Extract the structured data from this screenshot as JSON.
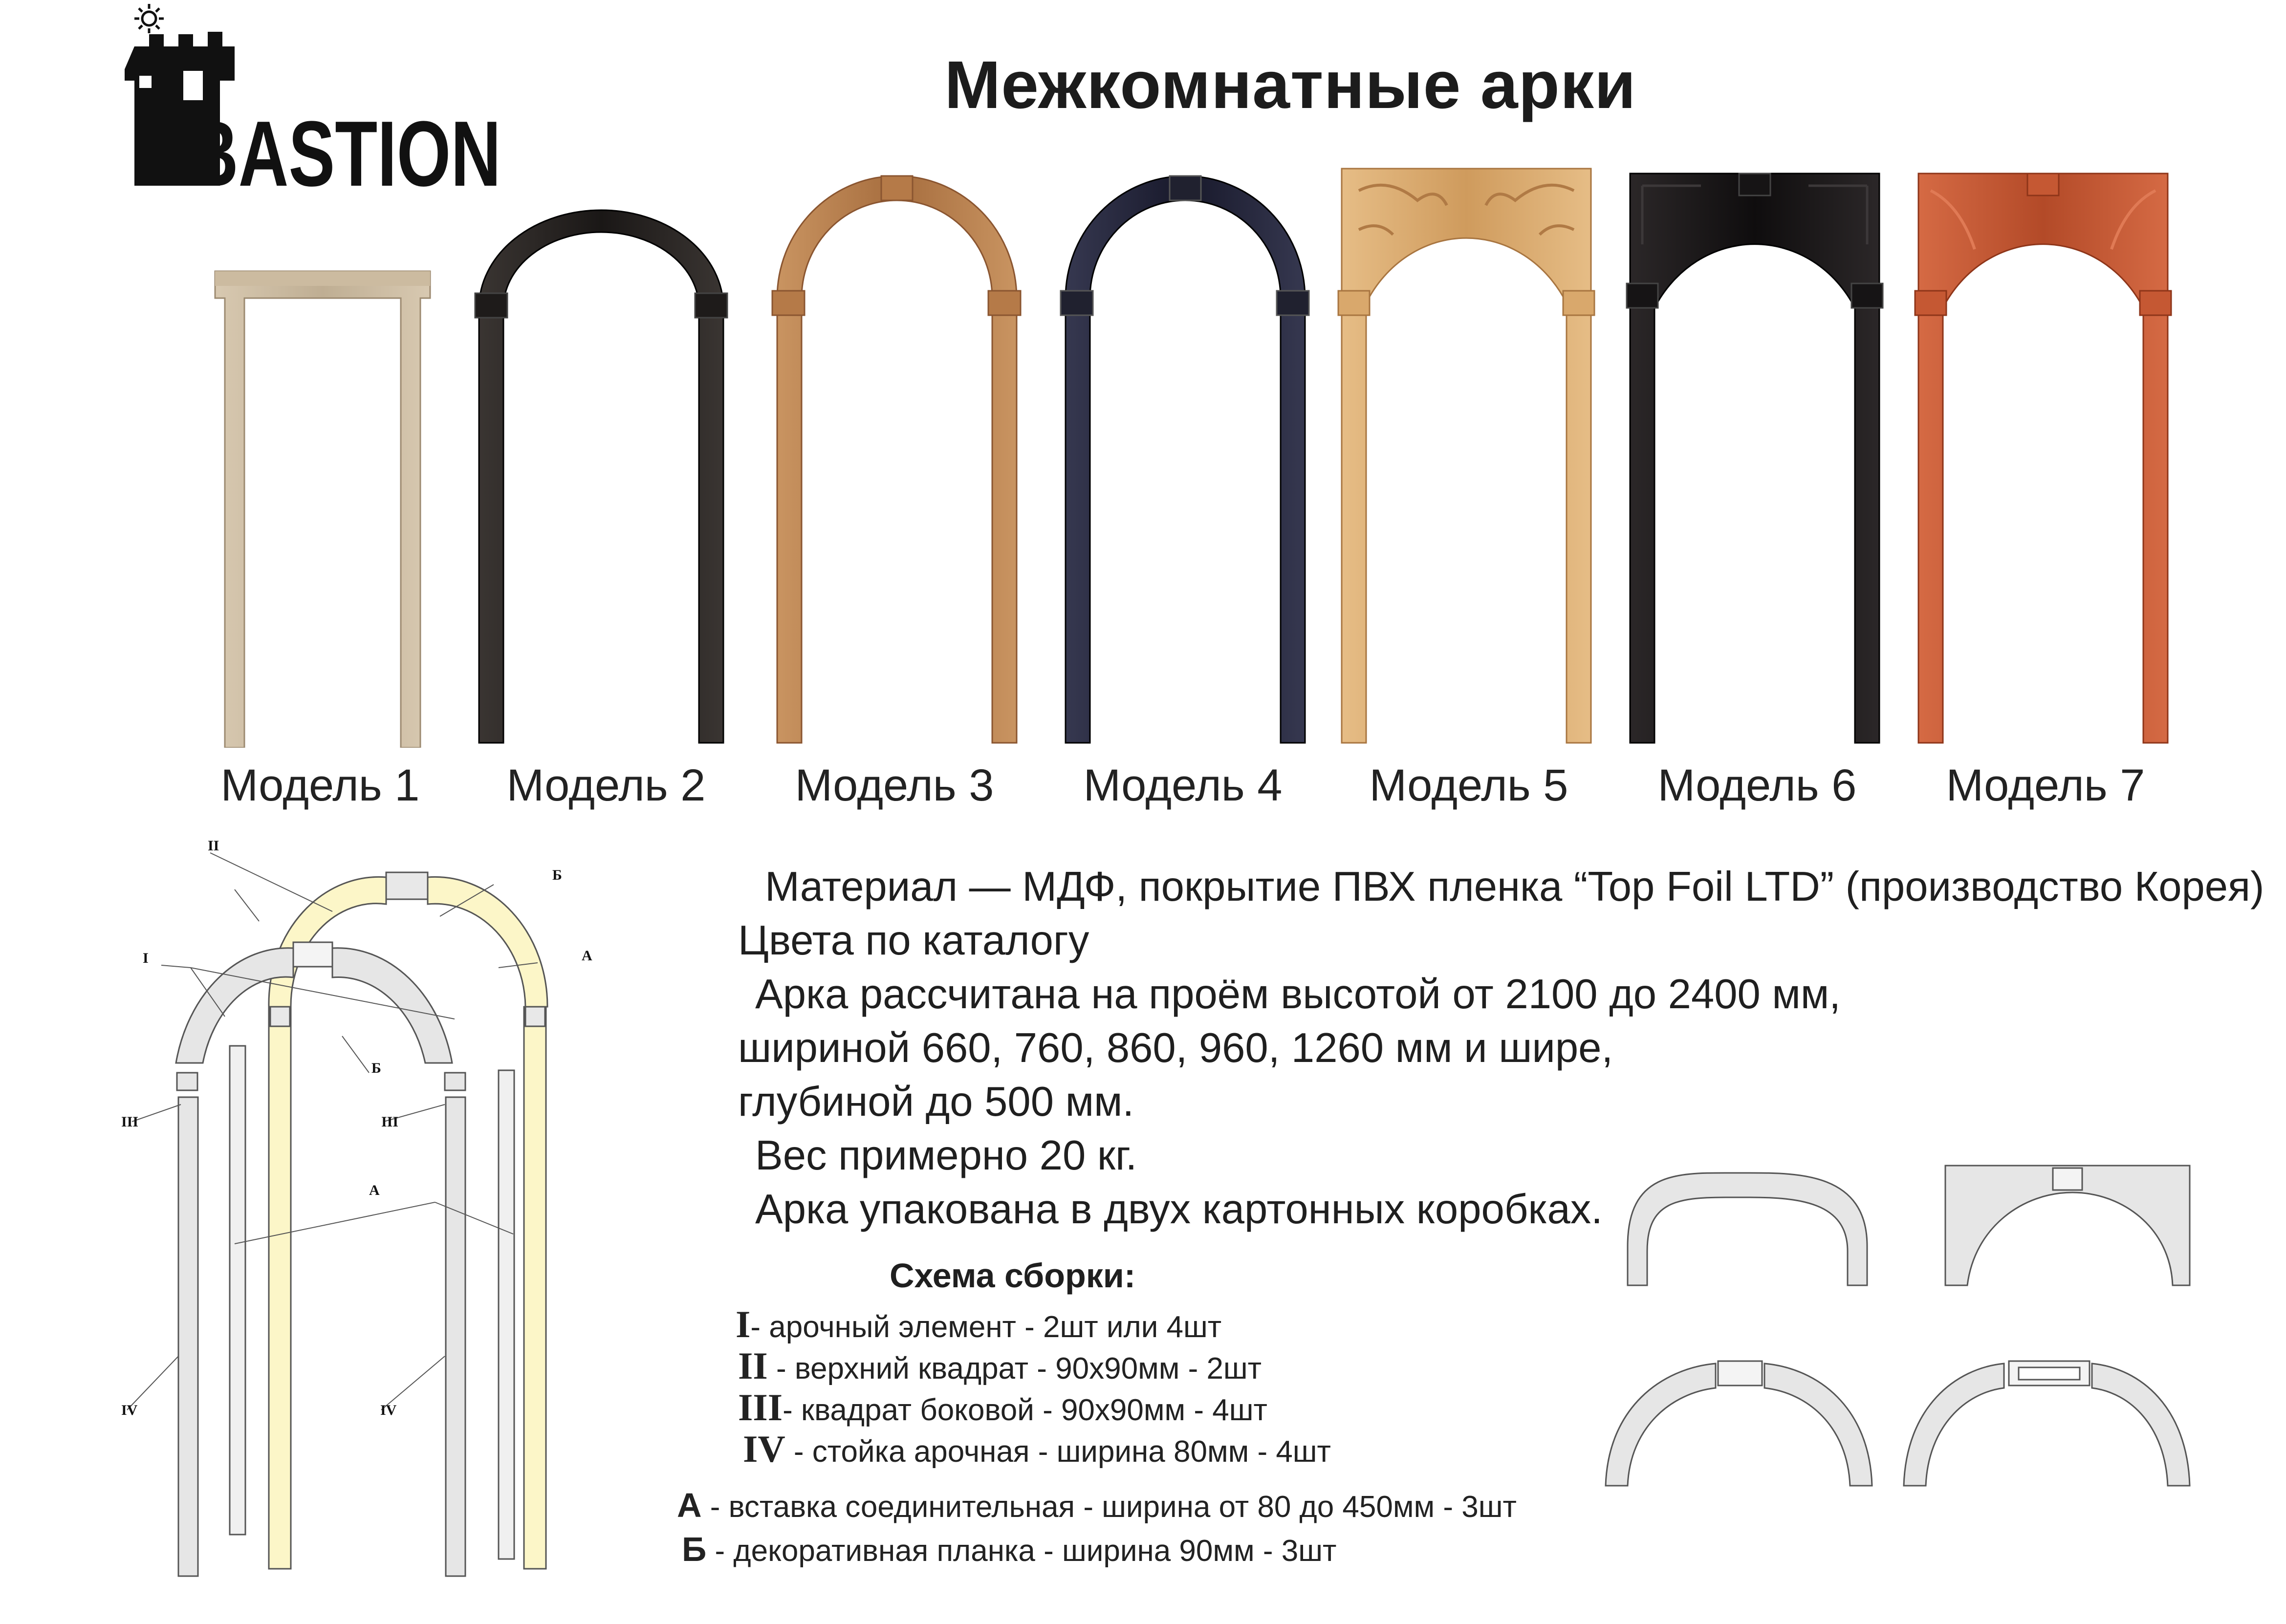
{
  "brand": {
    "logo_text": "BASTION"
  },
  "title": "Межкомнатные арки",
  "models": [
    {
      "label": "Модель 1",
      "color": "#c9b79d"
    },
    {
      "label": "Модель 2",
      "color": "#2a2624"
    },
    {
      "label": "Модель 3",
      "color": "#b9814f"
    },
    {
      "label": "Модель 4",
      "color": "#252636"
    },
    {
      "label": "Модель 5",
      "color": "#dcae74"
    },
    {
      "label": "Модель 6",
      "color": "#1a1718"
    },
    {
      "label": "Модель 7",
      "color": "#c65a36"
    }
  ],
  "description": [
    "Материал — МДФ, покрытие ПВХ пленка “Top Foil LTD” (производство Корея)",
    "Цвета по каталогу",
    "Арка рассчитана на проём высотой от 2100 до 2400 мм,",
    "шириной 660, 760, 860, 960, 1260 мм и шире,",
    "глубиной до 500 мм.",
    "Вес примерно 20 кг.",
    "Арка упакована в двух картонных коробках."
  ],
  "assembly": {
    "title": "Схема сборки:",
    "items": [
      {
        "key": "I",
        "text": "- арочный элемент - 2шт или 4шт"
      },
      {
        "key": "II",
        "text": " - верхний квадрат  - 90х90мм  - 2шт"
      },
      {
        "key": "III",
        "text": "- квадрат боковой  - 90х90мм - 4шт"
      },
      {
        "key": "IV",
        "text": " - стойка арочная - ширина 80мм - 4шт"
      },
      {
        "key": "А",
        "text": " - вставка соединительная - ширина от 80 до 450мм - 3шт"
      },
      {
        "key": "Б",
        "text": " - декоративная планка  - ширина 90мм - 3шт"
      }
    ]
  },
  "scheme_labels": {
    "I": "I",
    "II": "II",
    "III": "III",
    "IV": "IV",
    "A": "А",
    "B": "Б"
  }
}
